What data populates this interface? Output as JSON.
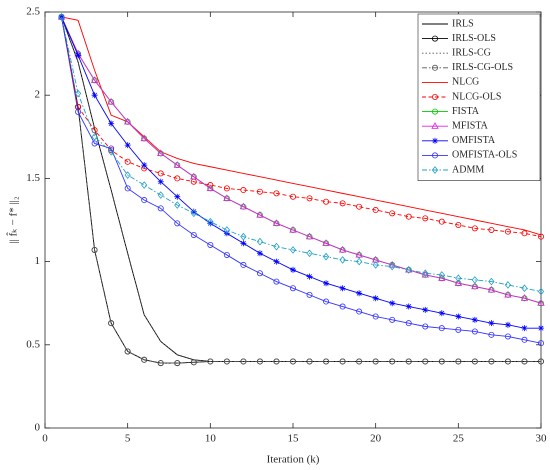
{
  "chart_data": {
    "type": "line",
    "xlabel": "Iteration (k)",
    "ylabel": "|| f̂ₖ − f* ||₂",
    "x": [
      1,
      2,
      3,
      4,
      5,
      6,
      7,
      8,
      9,
      10,
      11,
      12,
      13,
      14,
      15,
      16,
      17,
      18,
      19,
      20,
      21,
      22,
      23,
      24,
      25,
      26,
      27,
      28,
      29,
      30
    ],
    "xlim": [
      0,
      30
    ],
    "xticks": [
      0,
      5,
      10,
      15,
      20,
      25,
      30
    ],
    "ylim": [
      0,
      2.5
    ],
    "yticks": [
      0,
      0.5,
      1,
      1.5,
      2,
      2.5
    ],
    "legend": "upper right",
    "series": [
      {
        "name": "IRLS",
        "color": "#000000",
        "dash": "solid",
        "marker": "none",
        "values": [
          2.47,
          2.2,
          1.8,
          1.43,
          1.05,
          0.68,
          0.52,
          0.44,
          0.41,
          0.4,
          0.4,
          0.4,
          0.4,
          0.4,
          0.4,
          0.4,
          0.4,
          0.4,
          0.4,
          0.4,
          0.4,
          0.4,
          0.4,
          0.4,
          0.4,
          0.4,
          0.4,
          0.4,
          0.4,
          0.4
        ]
      },
      {
        "name": "IRLS-OLS",
        "color": "#000000",
        "dash": "solid",
        "marker": "circle",
        "values": [
          2.47,
          1.93,
          1.07,
          0.63,
          0.46,
          0.41,
          0.39,
          0.39,
          0.395,
          0.4,
          0.4,
          0.4,
          0.4,
          0.4,
          0.4,
          0.4,
          0.4,
          0.4,
          0.4,
          0.4,
          0.4,
          0.4,
          0.4,
          0.4,
          0.4,
          0.4,
          0.4,
          0.4,
          0.4,
          0.4
        ]
      },
      {
        "name": "IRLS-CG",
        "color": "#555555",
        "dash": "dotted",
        "marker": "none",
        "values": [
          2.47,
          2.2,
          1.8,
          1.43,
          1.05,
          0.68,
          0.52,
          0.44,
          0.41,
          0.4,
          0.4,
          0.4,
          0.4,
          0.4,
          0.4,
          0.4,
          0.4,
          0.4,
          0.4,
          0.4,
          0.4,
          0.4,
          0.4,
          0.4,
          0.4,
          0.4,
          0.4,
          0.4,
          0.4,
          0.4
        ]
      },
      {
        "name": "IRLS-CG-OLS",
        "color": "#555555",
        "dash": "dashdot",
        "marker": "circle",
        "values": [
          2.47,
          1.93,
          1.07,
          0.63,
          0.46,
          0.41,
          0.39,
          0.39,
          0.395,
          0.4,
          0.4,
          0.4,
          0.4,
          0.4,
          0.4,
          0.4,
          0.4,
          0.4,
          0.4,
          0.4,
          0.4,
          0.4,
          0.4,
          0.4,
          0.4,
          0.4,
          0.4,
          0.4,
          0.4,
          0.4
        ]
      },
      {
        "name": "NLCG",
        "color": "#ff0000",
        "dash": "solid",
        "marker": "none",
        "values": [
          2.47,
          2.45,
          2.15,
          1.88,
          1.84,
          1.75,
          1.66,
          1.62,
          1.59,
          1.57,
          1.55,
          1.53,
          1.51,
          1.49,
          1.47,
          1.45,
          1.43,
          1.41,
          1.39,
          1.37,
          1.35,
          1.33,
          1.31,
          1.29,
          1.27,
          1.25,
          1.23,
          1.21,
          1.19,
          1.16
        ]
      },
      {
        "name": "NLCG-OLS",
        "color": "#ff0000",
        "dash": "dashed",
        "marker": "circle",
        "values": [
          2.47,
          1.93,
          1.79,
          1.67,
          1.6,
          1.56,
          1.53,
          1.5,
          1.48,
          1.46,
          1.44,
          1.43,
          1.42,
          1.41,
          1.39,
          1.38,
          1.36,
          1.35,
          1.33,
          1.31,
          1.29,
          1.27,
          1.26,
          1.24,
          1.22,
          1.2,
          1.19,
          1.18,
          1.17,
          1.15
        ]
      },
      {
        "name": "FISTA",
        "color": "#00cc00",
        "dash": "solid",
        "marker": "circle",
        "values": [
          2.47,
          2.25,
          2.09,
          1.96,
          1.84,
          1.74,
          1.65,
          1.58,
          1.51,
          1.44,
          1.38,
          1.33,
          1.28,
          1.23,
          1.19,
          1.15,
          1.11,
          1.07,
          1.04,
          1.01,
          0.98,
          0.95,
          0.92,
          0.9,
          0.87,
          0.85,
          0.83,
          0.8,
          0.78,
          0.75
        ]
      },
      {
        "name": "MFISTA",
        "color": "#e020e0",
        "dash": "solid",
        "marker": "triangle",
        "values": [
          2.47,
          2.25,
          2.09,
          1.96,
          1.84,
          1.74,
          1.65,
          1.58,
          1.51,
          1.44,
          1.38,
          1.33,
          1.28,
          1.23,
          1.19,
          1.15,
          1.11,
          1.07,
          1.04,
          1.01,
          0.98,
          0.95,
          0.92,
          0.9,
          0.87,
          0.85,
          0.83,
          0.8,
          0.78,
          0.75
        ]
      },
      {
        "name": "OMFISTA",
        "color": "#0000ff",
        "dash": "solid",
        "marker": "star",
        "values": [
          2.47,
          2.24,
          2.0,
          1.83,
          1.7,
          1.58,
          1.48,
          1.39,
          1.3,
          1.23,
          1.17,
          1.11,
          1.05,
          1.0,
          0.95,
          0.91,
          0.87,
          0.84,
          0.81,
          0.78,
          0.75,
          0.73,
          0.71,
          0.69,
          0.67,
          0.65,
          0.63,
          0.62,
          0.6,
          0.6
        ]
      },
      {
        "name": "OMFISTA-OLS",
        "color": "#3333ff",
        "dash": "solid",
        "marker": "circle",
        "values": [
          2.47,
          1.9,
          1.71,
          1.68,
          1.44,
          1.37,
          1.32,
          1.23,
          1.16,
          1.1,
          1.04,
          0.98,
          0.93,
          0.88,
          0.84,
          0.8,
          0.76,
          0.73,
          0.7,
          0.67,
          0.65,
          0.63,
          0.61,
          0.6,
          0.59,
          0.58,
          0.56,
          0.55,
          0.53,
          0.51
        ]
      },
      {
        "name": "ADMM",
        "color": "#1fa0c8",
        "dash": "dashdot",
        "marker": "diamond",
        "values": [
          2.47,
          2.01,
          1.75,
          1.66,
          1.52,
          1.46,
          1.4,
          1.34,
          1.29,
          1.24,
          1.19,
          1.15,
          1.12,
          1.09,
          1.07,
          1.05,
          1.03,
          1.01,
          1.0,
          0.98,
          0.97,
          0.95,
          0.93,
          0.92,
          0.9,
          0.89,
          0.88,
          0.86,
          0.84,
          0.82
        ]
      }
    ]
  }
}
